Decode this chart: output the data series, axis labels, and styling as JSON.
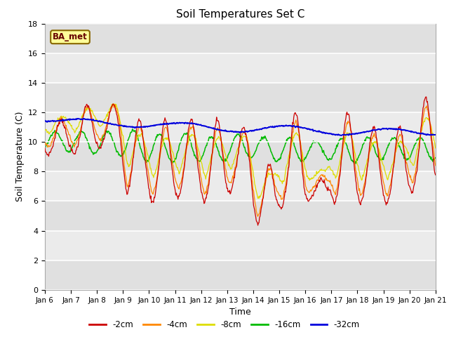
{
  "title": "Soil Temperatures Set C",
  "xlabel": "Time",
  "ylabel": "Soil Temperature (C)",
  "ylim": [
    0,
    18
  ],
  "yticks": [
    0,
    2,
    4,
    6,
    8,
    10,
    12,
    14,
    16,
    18
  ],
  "x_labels": [
    "Jan 6",
    "Jan 7",
    "Jan 8",
    "Jan 9",
    "Jan 10",
    "Jan 11",
    "Jan 12",
    "Jan 13",
    "Jan 14",
    "Jan 15",
    "Jan 16",
    "Jan 17",
    "Jan 18",
    "Jan 19",
    "Jan 20",
    "Jan 21"
  ],
  "annotation_text": "BA_met",
  "line_colors": {
    "-2cm": "#cc0000",
    "-4cm": "#ff8800",
    "-8cm": "#dddd00",
    "-16cm": "#00bb00",
    "-32cm": "#0000dd"
  },
  "legend_order": [
    "-2cm",
    "-4cm",
    "-8cm",
    "-16cm",
    "-32cm"
  ],
  "background_color": "#ffffff",
  "band_colors": [
    "#e0e0e0",
    "#ebebeb"
  ],
  "n_points": 720
}
